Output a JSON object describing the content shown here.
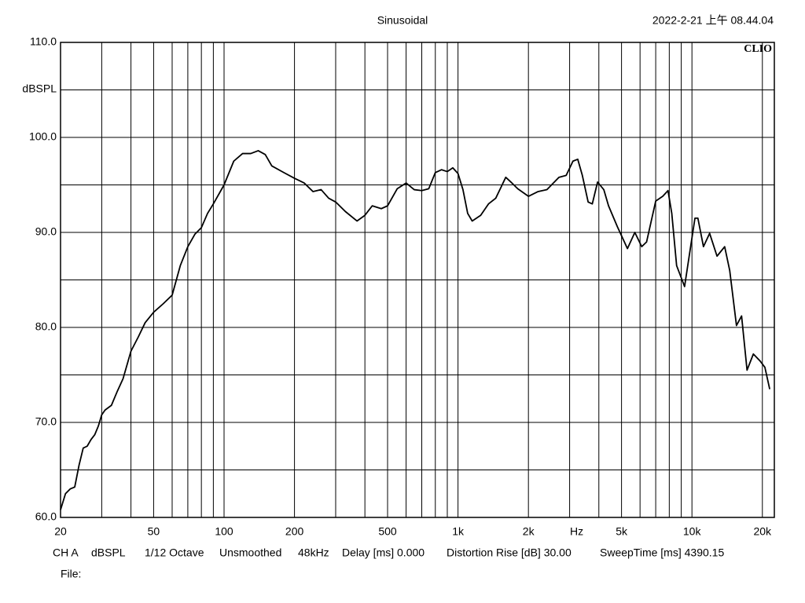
{
  "chart_data": {
    "type": "line",
    "title": "Sinusoidal",
    "timestamp": "2022-2-21 上午 08.44.04",
    "brand": "CLIO",
    "ylabel": "dBSPL",
    "xlabel": "Hz",
    "log_x": true,
    "grid": true,
    "color": "#000000",
    "xlim": [
      20,
      22500
    ],
    "ylim": [
      60,
      110
    ],
    "yticks": [
      {
        "value": 60,
        "label": "60.0"
      },
      {
        "value": 70,
        "label": "70.0"
      },
      {
        "value": 80,
        "label": "80.0"
      },
      {
        "value": 90,
        "label": "90.0"
      },
      {
        "value": 100,
        "label": "100.0"
      },
      {
        "value": 110,
        "label": "110.0"
      }
    ],
    "yminor": [
      65,
      75,
      85,
      95,
      105
    ],
    "xticks": [
      20,
      50,
      100,
      200,
      500,
      {
        "value": 1000,
        "label": "1k"
      },
      {
        "value": 2000,
        "label": "2k"
      },
      {
        "value": 5000,
        "label": "5k"
      },
      {
        "value": 10000,
        "label": "10k"
      },
      {
        "value": 20000,
        "label": "20k"
      }
    ],
    "xminor": [
      30,
      40,
      60,
      70,
      80,
      90,
      300,
      400,
      600,
      700,
      800,
      900,
      3000,
      4000,
      6000,
      7000,
      8000,
      9000
    ],
    "x": [
      20,
      21,
      22,
      23,
      24,
      25,
      26,
      27,
      28,
      29,
      30,
      31,
      33,
      35,
      37,
      40,
      43,
      46,
      50,
      55,
      60,
      65,
      70,
      75,
      80,
      85,
      90,
      100,
      110,
      120,
      130,
      140,
      150,
      160,
      180,
      200,
      220,
      240,
      260,
      280,
      300,
      330,
      370,
      400,
      430,
      470,
      500,
      550,
      600,
      650,
      700,
      750,
      800,
      850,
      900,
      950,
      1000,
      1050,
      1100,
      1150,
      1250,
      1350,
      1450,
      1600,
      1700,
      1800,
      2000,
      2200,
      2400,
      2700,
      2900,
      3100,
      3250,
      3400,
      3600,
      3750,
      3950,
      4200,
      4400,
      4800,
      5300,
      5700,
      6100,
      6400,
      7000,
      7500,
      7900,
      8200,
      8600,
      9300,
      9800,
      10300,
      10600,
      11200,
      11900,
      12800,
      13800,
      14500,
      15500,
      16300,
      17200,
      18300,
      19500,
      20500,
      21500
    ],
    "values": [
      60.8,
      62.5,
      63.0,
      63.2,
      65.5,
      67.3,
      67.5,
      68.2,
      68.7,
      69.6,
      70.8,
      71.3,
      71.8,
      73.3,
      74.6,
      77.5,
      79.0,
      80.5,
      81.6,
      82.5,
      83.4,
      86.5,
      88.5,
      89.8,
      90.5,
      92.0,
      93.0,
      95.0,
      97.5,
      98.3,
      98.3,
      98.6,
      98.2,
      97.0,
      96.3,
      95.7,
      95.2,
      94.3,
      94.5,
      93.6,
      93.2,
      92.2,
      91.2,
      91.8,
      92.8,
      92.5,
      92.8,
      94.6,
      95.2,
      94.5,
      94.4,
      94.6,
      96.3,
      96.6,
      96.4,
      96.8,
      96.2,
      94.5,
      92.0,
      91.2,
      91.8,
      93.0,
      93.6,
      95.8,
      95.2,
      94.6,
      93.8,
      94.3,
      94.5,
      95.8,
      96.0,
      97.5,
      97.7,
      96.0,
      93.2,
      93.0,
      95.3,
      94.5,
      92.8,
      90.6,
      88.3,
      90.0,
      88.5,
      89.0,
      93.3,
      93.8,
      94.4,
      92.0,
      86.5,
      84.3,
      88.0,
      91.5,
      91.5,
      88.5,
      89.9,
      87.5,
      88.5,
      86.0,
      80.2,
      81.2,
      75.5,
      77.2,
      76.5,
      75.8,
      73.5
    ],
    "footer": [
      "CH A",
      "dBSPL",
      "1/12 Octave",
      "Unsmoothed",
      "48kHz",
      "Delay [ms] 0.000",
      "Distortion Rise [dB] 30.00",
      "SweepTime [ms] 4390.15"
    ],
    "file_label": "File:"
  }
}
